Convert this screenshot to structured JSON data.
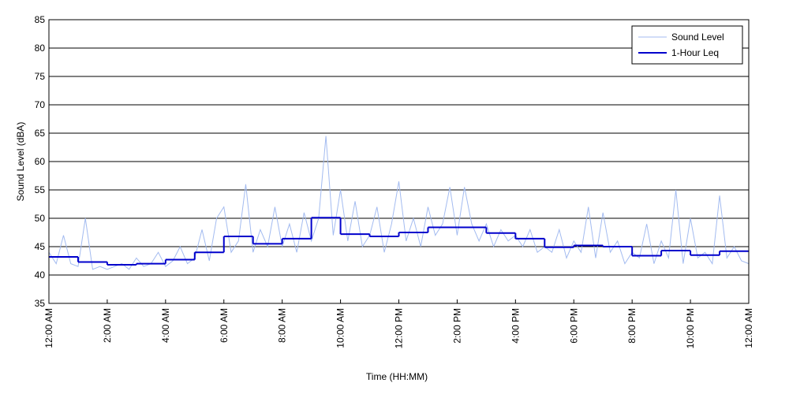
{
  "chart_data": {
    "type": "line",
    "xlabel": "Time (HH:MM)",
    "ylabel": "Sound Level (dBA)",
    "xlim": [
      0,
      24
    ],
    "xticks": [
      {
        "value": 0,
        "label": "12:00 AM"
      },
      {
        "value": 2,
        "label": "2:00 AM"
      },
      {
        "value": 4,
        "label": "4:00 AM"
      },
      {
        "value": 6,
        "label": "6:00 AM"
      },
      {
        "value": 8,
        "label": "8:00 AM"
      },
      {
        "value": 10,
        "label": "10:00 AM"
      },
      {
        "value": 12,
        "label": "12:00 PM"
      },
      {
        "value": 14,
        "label": "2:00 PM"
      },
      {
        "value": 16,
        "label": "4:00 PM"
      },
      {
        "value": 18,
        "label": "6:00 PM"
      },
      {
        "value": 20,
        "label": "8:00 PM"
      },
      {
        "value": 22,
        "label": "10:00 PM"
      },
      {
        "value": 24,
        "label": "12:00 AM"
      }
    ],
    "ylim": [
      35,
      85
    ],
    "yticks": [
      35,
      40,
      45,
      50,
      55,
      60,
      65,
      70,
      75,
      80,
      85
    ],
    "grid": true,
    "legend": "upper right",
    "series": [
      {
        "name": "Sound Level",
        "color": "#a3bbf0",
        "step": false,
        "x": [
          0,
          0.25,
          0.5,
          0.75,
          1,
          1.25,
          1.5,
          1.75,
          2,
          2.25,
          2.5,
          2.75,
          3,
          3.25,
          3.5,
          3.75,
          4,
          4.25,
          4.5,
          4.75,
          5,
          5.25,
          5.5,
          5.75,
          6,
          6.25,
          6.5,
          6.75,
          7,
          7.25,
          7.5,
          7.75,
          8,
          8.25,
          8.5,
          8.75,
          9,
          9.25,
          9.5,
          9.75,
          10,
          10.25,
          10.5,
          10.75,
          11,
          11.25,
          11.5,
          11.75,
          12,
          12.25,
          12.5,
          12.75,
          13,
          13.25,
          13.5,
          13.75,
          14,
          14.25,
          14.5,
          14.75,
          15,
          15.25,
          15.5,
          15.75,
          16,
          16.25,
          16.5,
          16.75,
          17,
          17.25,
          17.5,
          17.75,
          18,
          18.25,
          18.5,
          18.75,
          19,
          19.25,
          19.5,
          19.75,
          20,
          20.25,
          20.5,
          20.75,
          21,
          21.25,
          21.5,
          21.75,
          22,
          22.25,
          22.5,
          22.75,
          23,
          23.25,
          23.5,
          23.75,
          24
        ],
        "values": [
          44,
          42,
          47,
          42,
          41.5,
          50,
          41,
          41.5,
          41,
          41.5,
          42,
          41,
          43,
          41.5,
          42,
          44,
          41.5,
          42.5,
          45,
          42,
          43,
          48,
          42.5,
          50,
          52,
          44,
          46,
          56,
          44,
          48,
          45,
          52,
          45,
          49,
          44,
          51,
          46,
          50,
          64.5,
          47,
          55,
          46,
          53,
          45,
          47,
          52,
          44,
          49,
          56.5,
          46,
          50,
          45,
          52,
          47,
          49,
          55.5,
          47,
          55.5,
          49,
          46,
          49,
          45,
          48,
          46,
          47,
          45,
          48,
          44,
          45,
          44,
          48,
          43,
          46,
          44,
          52,
          43,
          51,
          44,
          46,
          42,
          44,
          43,
          49,
          42,
          46,
          43,
          55,
          42,
          50,
          43,
          44,
          42,
          54,
          43,
          45,
          42.5,
          42
        ]
      },
      {
        "name": "1-Hour Leq",
        "color": "#0000cc",
        "step": true,
        "x": [
          0,
          1,
          2,
          3,
          4,
          5,
          6,
          7,
          8,
          9,
          10,
          11,
          12,
          13,
          14,
          15,
          16,
          17,
          18,
          19,
          20,
          21,
          22,
          23
        ],
        "values": [
          43.2,
          42.3,
          41.8,
          42.0,
          42.7,
          44.0,
          46.8,
          45.5,
          46.4,
          50.1,
          47.2,
          46.8,
          47.5,
          48.4,
          48.4,
          47.4,
          46.4,
          44.9,
          45.2,
          45.0,
          43.4,
          44.3,
          43.5,
          44.2
        ]
      }
    ]
  }
}
